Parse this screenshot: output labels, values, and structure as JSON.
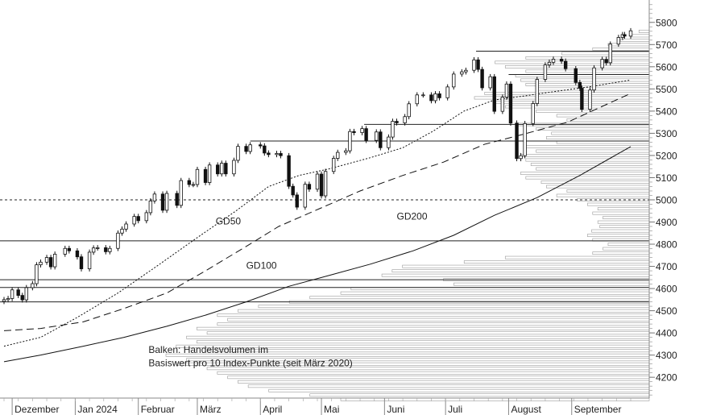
{
  "chart_data": {
    "type": "candlestick",
    "title": "",
    "xlabel": "",
    "ylabel": "",
    "ylim": [
      4100,
      5900
    ],
    "y_ticks": [
      4200,
      4300,
      4400,
      4500,
      4600,
      4700,
      4800,
      4900,
      5000,
      5100,
      5200,
      5300,
      5400,
      5500,
      5600,
      5700,
      5800
    ],
    "x_range": [
      "2023-11-27",
      "2024-09-30"
    ],
    "x_ticks": [
      {
        "date": "2023-12-01",
        "label": "Dezember"
      },
      {
        "date": "2024-01-01",
        "label": "Jan 2024"
      },
      {
        "date": "2024-02-01",
        "label": "Februar"
      },
      {
        "date": "2024-03-01",
        "label": "März"
      },
      {
        "date": "2024-04-01",
        "label": "April"
      },
      {
        "date": "2024-05-01",
        "label": "Mai"
      },
      {
        "date": "2024-06-01",
        "label": "Juni"
      },
      {
        "date": "2024-07-01",
        "label": "Juli"
      },
      {
        "date": "2024-08-01",
        "label": "August"
      },
      {
        "date": "2024-09-01",
        "label": "September"
      }
    ],
    "closes": [
      [
        "2023-11-27",
        4550
      ],
      [
        "2023-11-29",
        4555
      ],
      [
        "2023-12-01",
        4594
      ],
      [
        "2023-12-04",
        4569
      ],
      [
        "2023-12-06",
        4549
      ],
      [
        "2023-12-08",
        4604
      ],
      [
        "2023-12-11",
        4622
      ],
      [
        "2023-12-13",
        4707
      ],
      [
        "2023-12-15",
        4719
      ],
      [
        "2023-12-18",
        4740
      ],
      [
        "2023-12-20",
        4698
      ],
      [
        "2023-12-22",
        4755
      ],
      [
        "2023-12-27",
        4781
      ],
      [
        "2023-12-29",
        4770
      ],
      [
        "2024-01-02",
        4743
      ],
      [
        "2024-01-04",
        4689
      ],
      [
        "2024-01-08",
        4764
      ],
      [
        "2024-01-10",
        4783
      ],
      [
        "2024-01-12",
        4784
      ],
      [
        "2024-01-16",
        4766
      ],
      [
        "2024-01-18",
        4781
      ],
      [
        "2024-01-22",
        4850
      ],
      [
        "2024-01-24",
        4868
      ],
      [
        "2024-01-26",
        4891
      ],
      [
        "2024-01-30",
        4925
      ],
      [
        "2024-02-01",
        4906
      ],
      [
        "2024-02-05",
        4942
      ],
      [
        "2024-02-07",
        4995
      ],
      [
        "2024-02-09",
        5026
      ],
      [
        "2024-02-13",
        4953
      ],
      [
        "2024-02-15",
        5029
      ],
      [
        "2024-02-20",
        4975
      ],
      [
        "2024-02-22",
        5087
      ],
      [
        "2024-02-26",
        5069
      ],
      [
        "2024-02-28",
        5069
      ],
      [
        "2024-03-01",
        5137
      ],
      [
        "2024-03-05",
        5078
      ],
      [
        "2024-03-07",
        5157
      ],
      [
        "2024-03-11",
        5117
      ],
      [
        "2024-03-13",
        5165
      ],
      [
        "2024-03-15",
        5117
      ],
      [
        "2024-03-19",
        5178
      ],
      [
        "2024-03-21",
        5241
      ],
      [
        "2024-03-25",
        5218
      ],
      [
        "2024-03-27",
        5248
      ],
      [
        "2024-04-01",
        5243
      ],
      [
        "2024-04-03",
        5211
      ],
      [
        "2024-04-05",
        5204
      ],
      [
        "2024-04-09",
        5209
      ],
      [
        "2024-04-11",
        5199
      ],
      [
        "2024-04-15",
        5061
      ],
      [
        "2024-04-17",
        5022
      ],
      [
        "2024-04-19",
        4967
      ],
      [
        "2024-04-23",
        5070
      ],
      [
        "2024-04-25",
        5048
      ],
      [
        "2024-04-29",
        5116
      ],
      [
        "2024-05-01",
        5018
      ],
      [
        "2024-05-03",
        5128
      ],
      [
        "2024-05-07",
        5187
      ],
      [
        "2024-05-09",
        5214
      ],
      [
        "2024-05-13",
        5221
      ],
      [
        "2024-05-15",
        5308
      ],
      [
        "2024-05-17",
        5303
      ],
      [
        "2024-05-21",
        5321
      ],
      [
        "2024-05-23",
        5268
      ],
      [
        "2024-05-28",
        5306
      ],
      [
        "2024-05-30",
        5235
      ],
      [
        "2024-06-03",
        5283
      ],
      [
        "2024-06-05",
        5354
      ],
      [
        "2024-06-07",
        5347
      ],
      [
        "2024-06-11",
        5375
      ],
      [
        "2024-06-13",
        5433
      ],
      [
        "2024-06-17",
        5473
      ],
      [
        "2024-06-20",
        5473
      ],
      [
        "2024-06-24",
        5447
      ],
      [
        "2024-06-26",
        5478
      ],
      [
        "2024-06-28",
        5460
      ],
      [
        "2024-07-02",
        5509
      ],
      [
        "2024-07-05",
        5567
      ],
      [
        "2024-07-09",
        5577
      ],
      [
        "2024-07-11",
        5584
      ],
      [
        "2024-07-15",
        5631
      ],
      [
        "2024-07-17",
        5588
      ],
      [
        "2024-07-19",
        5505
      ],
      [
        "2024-07-23",
        5555
      ],
      [
        "2024-07-25",
        5399
      ],
      [
        "2024-07-29",
        5463
      ],
      [
        "2024-07-31",
        5522
      ],
      [
        "2024-08-02",
        5346
      ],
      [
        "2024-08-05",
        5186
      ],
      [
        "2024-08-07",
        5199
      ],
      [
        "2024-08-09",
        5344
      ],
      [
        "2024-08-13",
        5434
      ],
      [
        "2024-08-15",
        5543
      ],
      [
        "2024-08-19",
        5608
      ],
      [
        "2024-08-21",
        5620
      ],
      [
        "2024-08-23",
        5634
      ],
      [
        "2024-08-27",
        5625
      ],
      [
        "2024-08-29",
        5591
      ],
      [
        "2024-09-03",
        5529
      ],
      [
        "2024-09-05",
        5503
      ],
      [
        "2024-09-06",
        5408
      ],
      [
        "2024-09-10",
        5495
      ],
      [
        "2024-09-12",
        5595
      ],
      [
        "2024-09-16",
        5633
      ],
      [
        "2024-09-18",
        5618
      ],
      [
        "2024-09-20",
        5702
      ],
      [
        "2024-09-24",
        5732
      ],
      [
        "2024-09-26",
        5745
      ],
      [
        "2024-09-27",
        5738
      ],
      [
        "2024-09-30",
        5762
      ]
    ],
    "moving_averages": [
      {
        "name": "GD50",
        "style": "dotted",
        "points": [
          [
            "2023-11-27",
            4340
          ],
          [
            "2023-12-15",
            4380
          ],
          [
            "2024-01-02",
            4470
          ],
          [
            "2024-01-22",
            4580
          ],
          [
            "2024-02-10",
            4700
          ],
          [
            "2024-03-01",
            4830
          ],
          [
            "2024-03-20",
            4950
          ],
          [
            "2024-04-05",
            5060
          ],
          [
            "2024-04-20",
            5110
          ],
          [
            "2024-05-05",
            5140
          ],
          [
            "2024-05-25",
            5190
          ],
          [
            "2024-06-10",
            5235
          ],
          [
            "2024-06-25",
            5310
          ],
          [
            "2024-07-10",
            5400
          ],
          [
            "2024-07-25",
            5450
          ],
          [
            "2024-08-10",
            5470
          ],
          [
            "2024-08-25",
            5490
          ],
          [
            "2024-09-10",
            5510
          ],
          [
            "2024-09-30",
            5540
          ]
        ]
      },
      {
        "name": "GD100",
        "style": "dashed",
        "points": [
          [
            "2023-11-27",
            4410
          ],
          [
            "2023-12-15",
            4420
          ],
          [
            "2024-01-05",
            4450
          ],
          [
            "2024-01-25",
            4510
          ],
          [
            "2024-02-15",
            4580
          ],
          [
            "2024-03-05",
            4680
          ],
          [
            "2024-03-25",
            4790
          ],
          [
            "2024-04-10",
            4880
          ],
          [
            "2024-04-30",
            4960
          ],
          [
            "2024-05-20",
            5040
          ],
          [
            "2024-06-10",
            5110
          ],
          [
            "2024-06-30",
            5170
          ],
          [
            "2024-07-20",
            5250
          ],
          [
            "2024-08-10",
            5300
          ],
          [
            "2024-08-30",
            5350
          ],
          [
            "2024-09-30",
            5480
          ]
        ]
      },
      {
        "name": "GD200",
        "style": "solid",
        "points": [
          [
            "2023-11-27",
            4270
          ],
          [
            "2023-12-15",
            4300
          ],
          [
            "2024-01-05",
            4340
          ],
          [
            "2024-01-25",
            4380
          ],
          [
            "2024-02-15",
            4430
          ],
          [
            "2024-03-05",
            4480
          ],
          [
            "2024-03-25",
            4540
          ],
          [
            "2024-04-15",
            4610
          ],
          [
            "2024-05-05",
            4660
          ],
          [
            "2024-05-25",
            4710
          ],
          [
            "2024-06-15",
            4770
          ],
          [
            "2024-07-05",
            4840
          ],
          [
            "2024-07-25",
            4930
          ],
          [
            "2024-08-15",
            5010
          ],
          [
            "2024-09-05",
            5110
          ],
          [
            "2024-09-30",
            5240
          ]
        ]
      }
    ],
    "horizontal_lines": [
      {
        "value": 5000,
        "style": "dashed",
        "from": "2023-11-27",
        "to": "2024-09-30"
      },
      {
        "value": 4815,
        "style": "solid",
        "from": "2023-11-27",
        "to": "2024-09-30"
      },
      {
        "value": 4640,
        "style": "solid",
        "from": "2023-11-27",
        "to": "2024-09-30"
      },
      {
        "value": 4605,
        "style": "solid",
        "from": "2023-11-27",
        "to": "2024-09-30"
      },
      {
        "value": 4540,
        "style": "solid",
        "from": "2023-11-27",
        "to": "2024-09-30"
      },
      {
        "value": 5265,
        "style": "solid",
        "from": "2024-03-27",
        "to": "2024-09-30"
      },
      {
        "value": 5340,
        "style": "solid",
        "from": "2024-05-22",
        "to": "2024-09-30"
      },
      {
        "value": 5565,
        "style": "solid",
        "from": "2024-08-01",
        "to": "2024-09-30"
      },
      {
        "value": 5670,
        "style": "solid",
        "from": "2024-07-16",
        "to": "2024-09-30"
      }
    ],
    "volume_profile": [
      [
        5760,
        10
      ],
      [
        5740,
        18
      ],
      [
        5720,
        28
      ],
      [
        5700,
        40
      ],
      [
        5680,
        55
      ],
      [
        5660,
        85
      ],
      [
        5640,
        120
      ],
      [
        5620,
        150
      ],
      [
        5600,
        140
      ],
      [
        5580,
        120
      ],
      [
        5560,
        130
      ],
      [
        5540,
        125
      ],
      [
        5520,
        120
      ],
      [
        5500,
        110
      ],
      [
        5480,
        160
      ],
      [
        5460,
        170
      ],
      [
        5440,
        150
      ],
      [
        5420,
        140
      ],
      [
        5400,
        110
      ],
      [
        5380,
        90
      ],
      [
        5360,
        80
      ],
      [
        5340,
        130
      ],
      [
        5320,
        110
      ],
      [
        5300,
        95
      ],
      [
        5280,
        100
      ],
      [
        5260,
        90
      ],
      [
        5240,
        120
      ],
      [
        5220,
        110
      ],
      [
        5200,
        125
      ],
      [
        5180,
        120
      ],
      [
        5160,
        115
      ],
      [
        5140,
        110
      ],
      [
        5120,
        125
      ],
      [
        5100,
        120
      ],
      [
        5080,
        105
      ],
      [
        5060,
        100
      ],
      [
        5040,
        80
      ],
      [
        5020,
        90
      ],
      [
        5000,
        70
      ],
      [
        4980,
        60
      ],
      [
        4960,
        50
      ],
      [
        4940,
        55
      ],
      [
        4920,
        45
      ],
      [
        4900,
        50
      ],
      [
        4880,
        48
      ],
      [
        4860,
        56
      ],
      [
        4840,
        60
      ],
      [
        4820,
        55
      ],
      [
        4800,
        40
      ],
      [
        4780,
        45
      ],
      [
        4760,
        55
      ],
      [
        4740,
        140
      ],
      [
        4720,
        180
      ],
      [
        4700,
        240
      ],
      [
        4680,
        250
      ],
      [
        4660,
        260
      ],
      [
        4640,
        200
      ],
      [
        4620,
        190
      ],
      [
        4600,
        290
      ],
      [
        4580,
        300
      ],
      [
        4560,
        330
      ],
      [
        4540,
        350
      ],
      [
        4520,
        380
      ],
      [
        4500,
        400
      ],
      [
        4480,
        420
      ],
      [
        4460,
        410
      ],
      [
        4440,
        420
      ],
      [
        4420,
        440
      ],
      [
        4400,
        430
      ],
      [
        4380,
        450
      ],
      [
        4360,
        440
      ],
      [
        4340,
        460
      ],
      [
        4320,
        430
      ],
      [
        4300,
        470
      ],
      [
        4280,
        450
      ],
      [
        4260,
        460
      ],
      [
        4240,
        430
      ],
      [
        4220,
        420
      ],
      [
        4200,
        410
      ],
      [
        4180,
        400
      ],
      [
        4160,
        390
      ],
      [
        4140,
        370
      ],
      [
        4120,
        330
      ],
      [
        4100,
        300
      ]
    ],
    "annotations": [
      {
        "text": "GD50",
        "x": "2024-03-10",
        "y": 4890
      },
      {
        "text": "GD100",
        "x": "2024-03-25",
        "y": 4690
      },
      {
        "text": "GD200",
        "x": "2024-06-07",
        "y": 4910
      },
      {
        "text": "Balken: Handelsvolumen im",
        "x": "2024-02-06",
        "y": 4310
      },
      {
        "text": "Basiswert pro 10 Index-Punkte (seit März 2020)",
        "x": "2024-02-06",
        "y": 4250
      }
    ],
    "grid": false,
    "legend": "none"
  }
}
